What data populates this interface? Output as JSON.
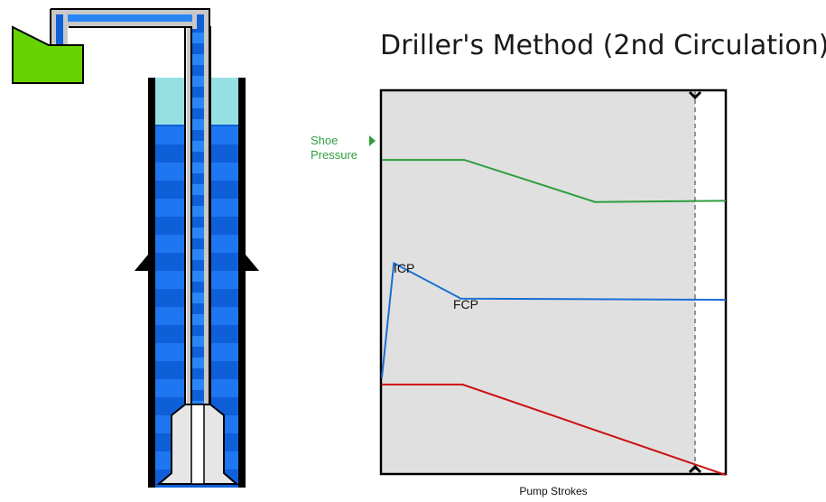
{
  "title": "Driller's Method (2nd Circulation)",
  "labels": {
    "shoe_pressure_line1": "Shoe",
    "shoe_pressure_line2": "Pressure",
    "icp": "ICP",
    "fcp": "FCP",
    "xlabel": "Pump Strokes"
  },
  "colors": {
    "shoe_pressure": "#2e9e3e",
    "drillpipe_pressure": "#1a6fd4",
    "casing_pressure": "#cc1111",
    "plot_background": "#e0e0e0",
    "mud_blue": "#0f5fd8",
    "mud_stripe": "#1e76f0",
    "gas_cyan": "#96e0e4",
    "pump_green": "#66d400"
  },
  "icons": {
    "pump": "pump-icon",
    "wellbore": "wellbore-icon"
  },
  "chart_data": {
    "type": "line",
    "title": "Driller's Method (2nd Circulation)",
    "xlabel": "Pump Strokes",
    "ylabel": "",
    "grid": false,
    "cursor_position_fraction": 0.915,
    "series": [
      {
        "name": "Shoe Pressure",
        "key": "shoe",
        "points": [
          [
            0,
            0.82
          ],
          [
            0.24,
            0.82
          ],
          [
            0.62,
            0.71
          ],
          [
            1.0,
            0.713
          ]
        ]
      },
      {
        "name": "",
        "key": "drillpipe",
        "points": [
          [
            0,
            0.25
          ],
          [
            0.035,
            0.55
          ],
          [
            0.23,
            0.457
          ],
          [
            1.0,
            0.454
          ]
        ]
      },
      {
        "name": "",
        "key": "casing",
        "points": [
          [
            0,
            0.232
          ],
          [
            0.235,
            0.232
          ],
          [
            1.0,
            -0.005
          ]
        ]
      }
    ],
    "annotations": [
      {
        "text": "ICP",
        "at": [
          0.035,
          0.55
        ]
      },
      {
        "text": "FCP",
        "at": [
          0.23,
          0.457
        ]
      }
    ]
  }
}
